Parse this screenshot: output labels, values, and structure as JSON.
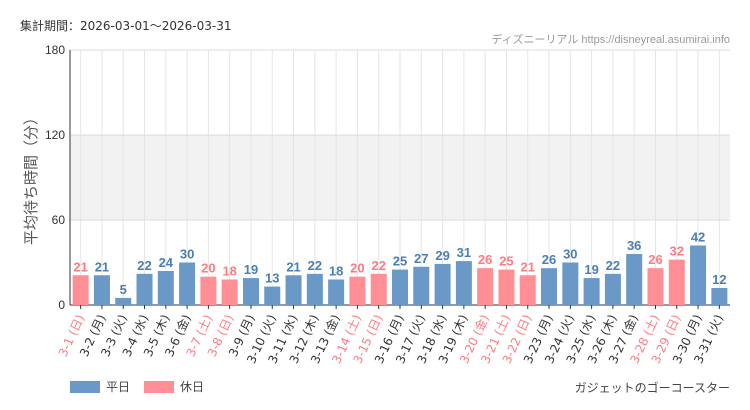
{
  "header": {
    "period": "集計期間：2026-03-01～2026-03-31",
    "credit": "ディズニーリアル https://disneyreal.asumirai.info"
  },
  "legend": {
    "weekday": "平日",
    "holiday": "休日"
  },
  "attraction": "ガジェットのゴーコースター",
  "colors": {
    "weekday": "#6a99c7",
    "holiday": "#ff8f94",
    "weekday_text": "#4a7fb5",
    "holiday_text": "#ff7b82",
    "band": "#f2f2f2"
  },
  "chart_data": {
    "type": "bar",
    "ylabel": "平均待ち時間（分）",
    "ylim": [
      0,
      180
    ],
    "yticks": [
      0,
      60,
      120,
      180
    ],
    "grid": true,
    "legend_position": "bottom-left",
    "categories": [
      "3-1 (日)",
      "3-2 (月)",
      "3-3 (火)",
      "3-4 (水)",
      "3-5 (木)",
      "3-6 (金)",
      "3-7 (土)",
      "3-8 (日)",
      "3-9 (月)",
      "3-10 (火)",
      "3-11 (水)",
      "3-12 (木)",
      "3-13 (金)",
      "3-14 (土)",
      "3-15 (日)",
      "3-16 (月)",
      "3-17 (火)",
      "3-18 (水)",
      "3-19 (木)",
      "3-20 (金)",
      "3-21 (土)",
      "3-22 (日)",
      "3-23 (月)",
      "3-24 (火)",
      "3-25 (水)",
      "3-26 (木)",
      "3-27 (金)",
      "3-28 (土)",
      "3-29 (日)",
      "3-30 (月)",
      "3-31 (火)"
    ],
    "values": [
      21,
      21,
      5,
      22,
      24,
      30,
      20,
      18,
      19,
      13,
      21,
      22,
      18,
      20,
      22,
      25,
      27,
      29,
      31,
      26,
      25,
      21,
      26,
      30,
      19,
      22,
      36,
      26,
      32,
      42,
      12
    ],
    "holiday": [
      true,
      false,
      false,
      false,
      false,
      false,
      true,
      true,
      false,
      false,
      false,
      false,
      false,
      true,
      true,
      false,
      false,
      false,
      false,
      true,
      true,
      true,
      false,
      false,
      false,
      false,
      false,
      true,
      true,
      false,
      false
    ]
  }
}
